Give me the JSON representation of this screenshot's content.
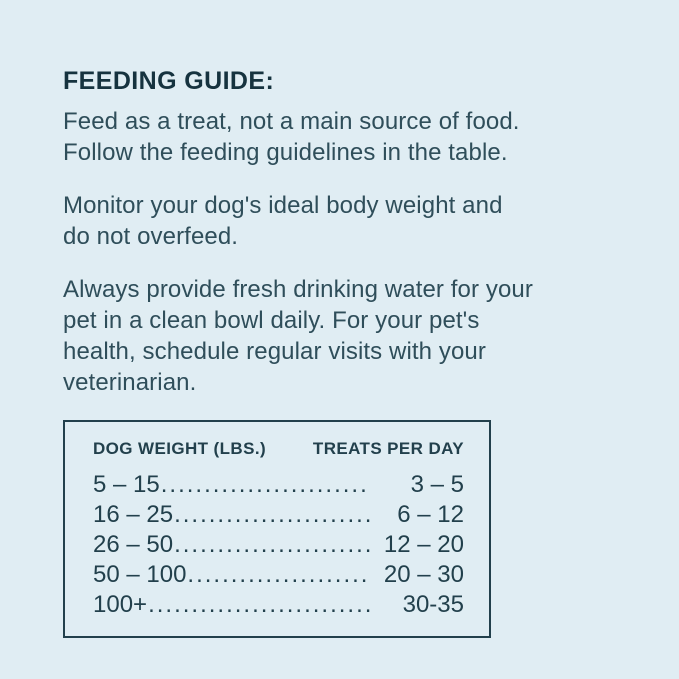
{
  "colors": {
    "background": "#e0edf3",
    "heading_text": "#16333f",
    "body_text": "#2f4e5a",
    "table_text": "#22404c",
    "table_border": "#22404c"
  },
  "guide": {
    "title": "FEEDING GUIDE:",
    "paragraphs": [
      "Feed as a treat, not a main source of food.\nFollow the feeding guidelines in the table.",
      "Monitor your dog's ideal body weight and\ndo not overfeed.",
      "Always provide fresh drinking water for your\npet in a clean bowl daily. For your pet's\nhealth, schedule regular visits with your\nveterinarian."
    ]
  },
  "table": {
    "headers": [
      "DOG WEIGHT (LBS.)",
      "TREATS PER DAY"
    ],
    "leader": "..................................................................................................",
    "rows": [
      {
        "weight": "5 – 15",
        "treats": "3 – 5"
      },
      {
        "weight": "16 – 25",
        "treats": "6 – 12"
      },
      {
        "weight": "26 – 50",
        "treats": "12 – 20"
      },
      {
        "weight": "50 – 100",
        "treats": "20 – 30"
      },
      {
        "weight": "100+",
        "treats": "30-35"
      }
    ]
  }
}
